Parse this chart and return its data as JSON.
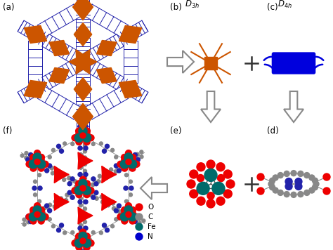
{
  "bg_color": "#ffffff",
  "orange_color": "#CC5500",
  "blue_color": "#0000DD",
  "dark_blue": "#2222AA",
  "teal_color": "#006B6B",
  "red_color": "#EE0000",
  "grey_color": "#888888",
  "arrow_edge": "#999999",
  "label_fontsize": 8,
  "D3h_text": "$D_{3h}$",
  "D4h_text": "$D_{4h}$",
  "legend_items": [
    {
      "color": "#EE0000",
      "label": "O"
    },
    {
      "color": "#888888",
      "label": "C"
    },
    {
      "color": "#006B6B",
      "label": "Fe"
    },
    {
      "color": "#0000CC",
      "label": "N"
    }
  ]
}
